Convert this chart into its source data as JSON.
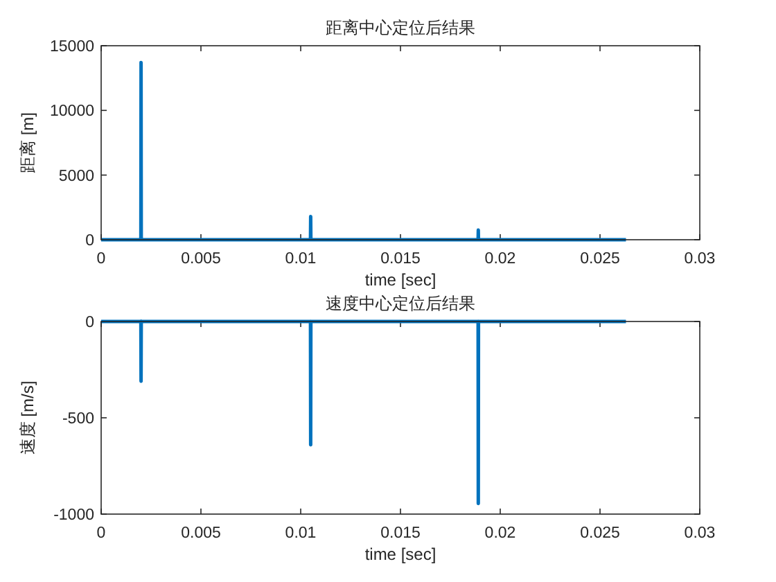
{
  "chart_data": [
    {
      "type": "line",
      "title": "距离中心定位后结果",
      "xlabel": "time [sec]",
      "ylabel": "距离 [m]",
      "color": "#0072bd",
      "x": [
        0,
        0.00199,
        0.002,
        0.00201,
        0.01049,
        0.0105,
        0.01051,
        0.01889,
        0.0189,
        0.01891,
        0.0263
      ],
      "values": [
        0,
        0,
        13700,
        0,
        0,
        1800,
        0,
        0,
        750,
        0,
        0
      ],
      "xlim": [
        0,
        0.03
      ],
      "ylim": [
        0,
        15000
      ],
      "xticks": [
        0,
        0.005,
        0.01,
        0.015,
        0.02,
        0.025,
        0.03
      ],
      "yticks": [
        0,
        5000,
        10000,
        15000
      ]
    },
    {
      "type": "line",
      "title": "速度中心定位后结果",
      "xlabel": "time [sec]",
      "ylabel": "速度 [m/s]",
      "color": "#0072bd",
      "x": [
        0,
        0.00199,
        0.002,
        0.00201,
        0.01049,
        0.0105,
        0.01051,
        0.01889,
        0.0189,
        0.01891,
        0.0263
      ],
      "values": [
        0,
        0,
        -310,
        0,
        0,
        -640,
        0,
        0,
        -945,
        0,
        0
      ],
      "xlim": [
        0,
        0.03
      ],
      "ylim": [
        -1000,
        0
      ],
      "xticks": [
        0,
        0.005,
        0.01,
        0.015,
        0.02,
        0.025,
        0.03
      ],
      "yticks": [
        -1000,
        -500,
        0
      ]
    }
  ]
}
